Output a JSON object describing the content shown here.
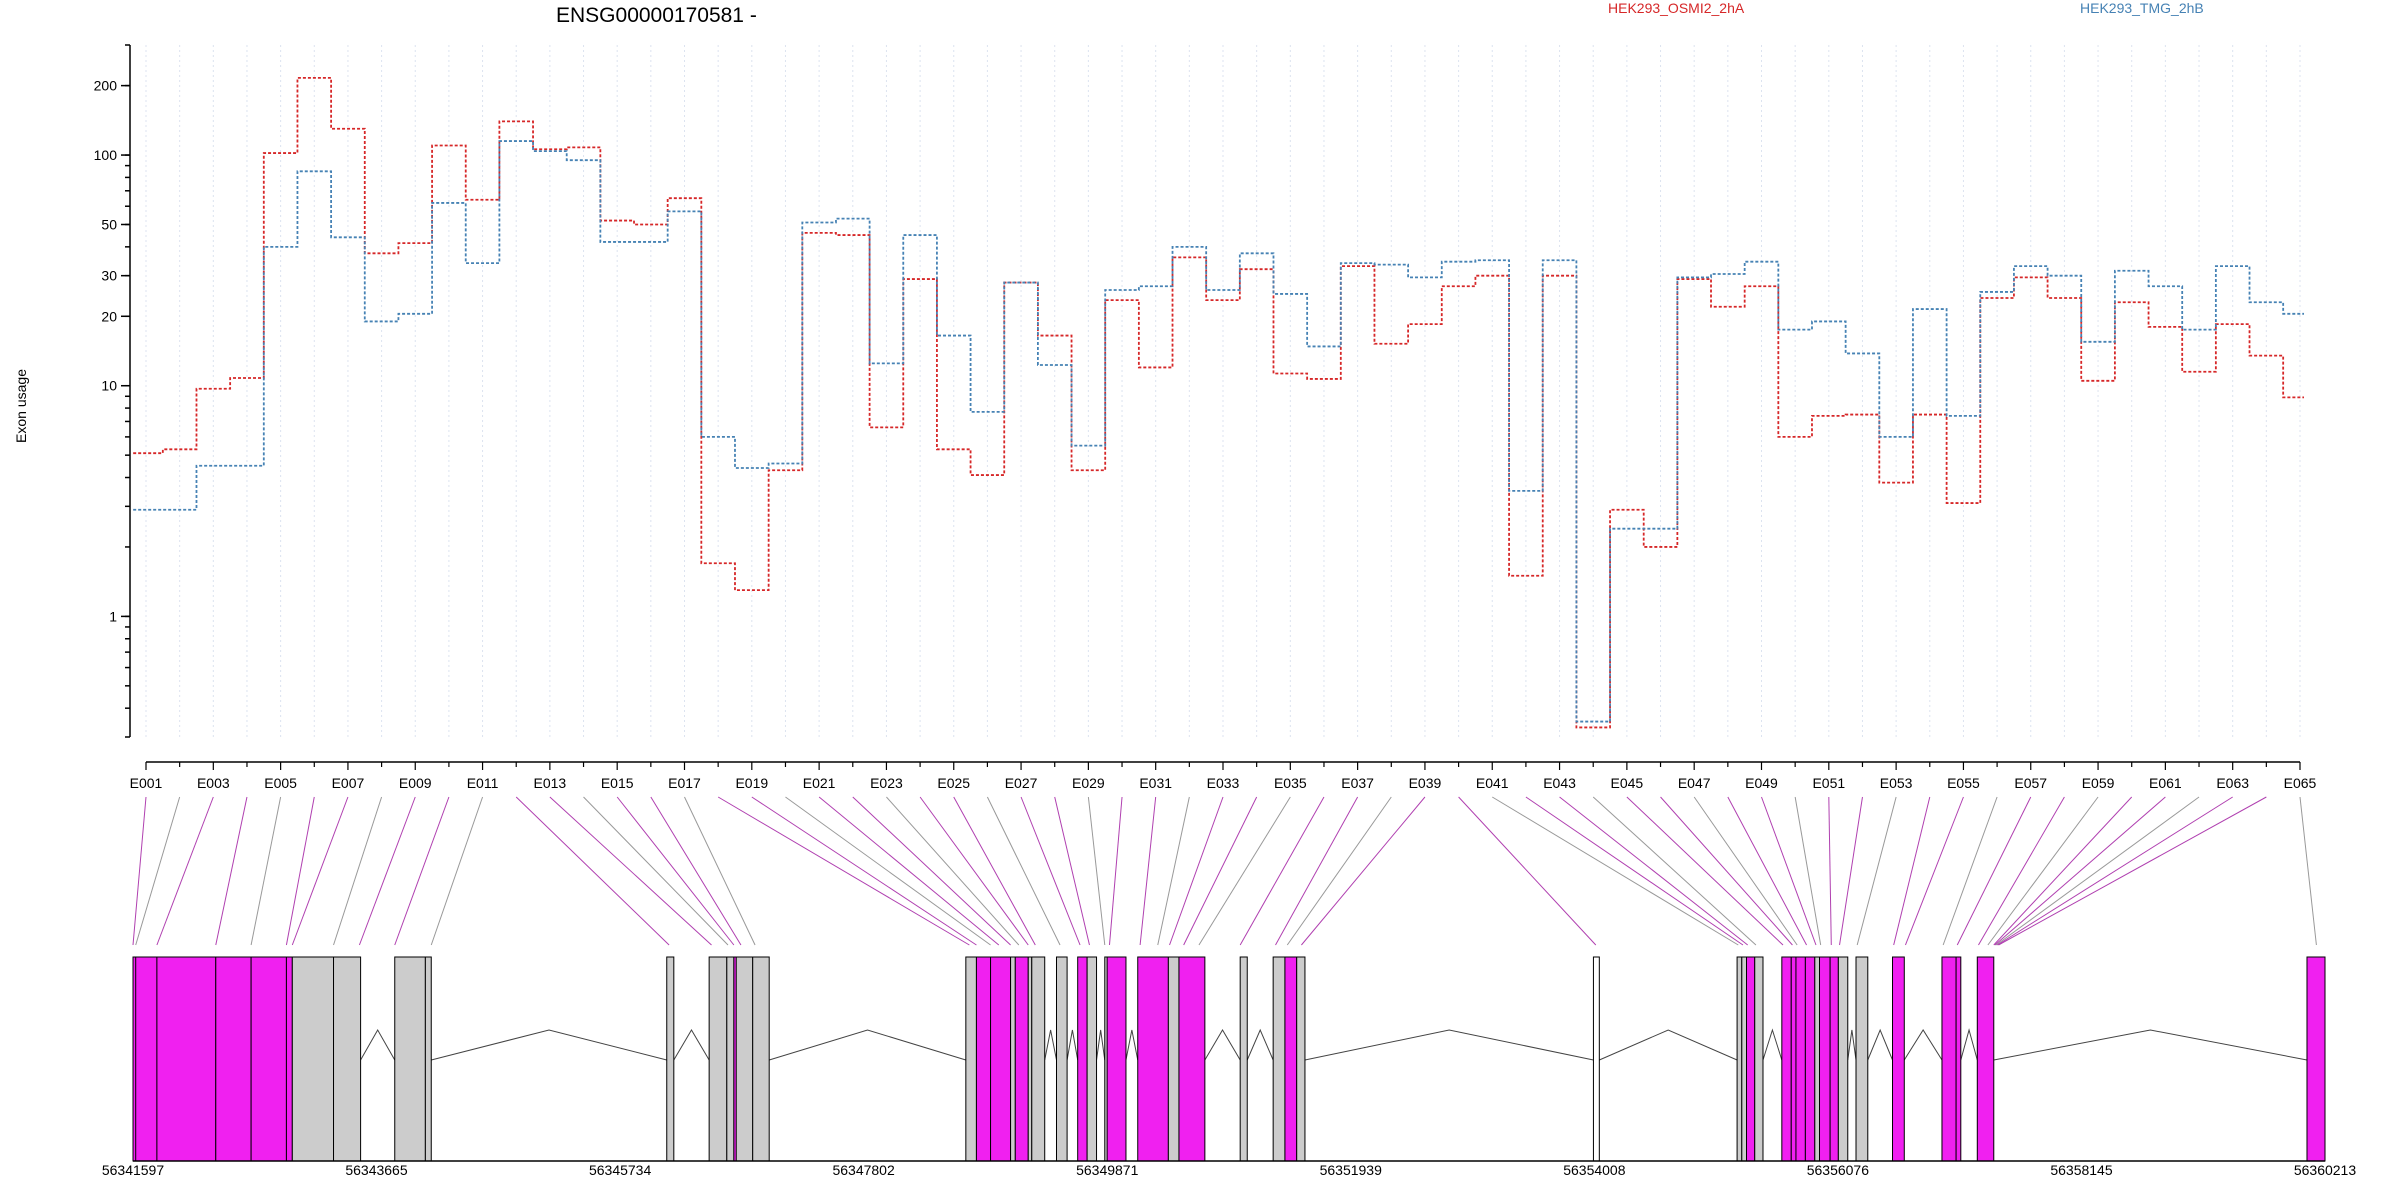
{
  "chart_data": {
    "type": "line",
    "title": "ENSG00000170581 -",
    "ylabel": "Exon usage",
    "yscale": "log",
    "ylim": [
      0.3,
      300
    ],
    "yticks": [
      1,
      10,
      20,
      30,
      50,
      100,
      200
    ],
    "series": [
      {
        "name": "HEK293_OSMI2_2hA",
        "color": "#d62728",
        "values": [
          5.1,
          5.3,
          9.7,
          10.8,
          102,
          216,
          130,
          37.5,
          41.5,
          110,
          64,
          140,
          106,
          108,
          52,
          50,
          65,
          1.7,
          1.3,
          4.3,
          46,
          45,
          6.6,
          29,
          5.3,
          4.1,
          28,
          16.5,
          4.3,
          23.5,
          12,
          36,
          23.5,
          32,
          11.3,
          10.7,
          33,
          15.2,
          18.5,
          27,
          30,
          1.5,
          30,
          0.33,
          2.9,
          2,
          29,
          22,
          27,
          6,
          7.4,
          7.5,
          3.8,
          7.5,
          3.1,
          24,
          29.5,
          24,
          10.5,
          23,
          18,
          11.5,
          18.5,
          13.5,
          8.9
        ]
      },
      {
        "name": "HEK293_TMG_2hB",
        "color": "#4682b4",
        "values": [
          2.9,
          2.9,
          4.5,
          4.5,
          40,
          85,
          44,
          19,
          20.5,
          62,
          34,
          115,
          104,
          95,
          42,
          42,
          57,
          6,
          4.4,
          4.6,
          51,
          53,
          12.5,
          45,
          16.5,
          7.7,
          28,
          12.3,
          5.5,
          26,
          27,
          40,
          26,
          37.5,
          25,
          14.8,
          34,
          33.5,
          29.5,
          34.5,
          35,
          3.5,
          35,
          0.35,
          2.4,
          2.4,
          29.5,
          30.5,
          34.5,
          17.5,
          19,
          13.8,
          6,
          21.5,
          7.4,
          25.5,
          33,
          30,
          15.5,
          31.5,
          27,
          17.5,
          33,
          23,
          20.5
        ]
      }
    ],
    "exon_labels": [
      "E001",
      "E003",
      "E005",
      "E007",
      "E009",
      "E011",
      "E013",
      "E015",
      "E017",
      "E019",
      "E021",
      "E023",
      "E025",
      "E027",
      "E029",
      "E031",
      "E033",
      "E035",
      "E037",
      "E039",
      "E041",
      "E043",
      "E045",
      "E047",
      "E049",
      "E051",
      "E053",
      "E055",
      "E057",
      "E059",
      "E061",
      "E063",
      "E065"
    ],
    "genomic_ticks": [
      "56341597",
      "56343665",
      "56345734",
      "56347802",
      "56349871",
      "56351939",
      "56354008",
      "56356076",
      "56358145",
      "56360213"
    ],
    "gene_model": {
      "start": 56341597,
      "end": 56360213,
      "colors": {
        "significant": "#f020f0",
        "normal": "#cccccc",
        "stroke": "#000000",
        "intron": "#444444",
        "link": "#999999"
      },
      "exons": [
        [
          56341597,
          56341620,
          1
        ],
        [
          56341620,
          56341800,
          1
        ],
        [
          56341800,
          56342300,
          1
        ],
        [
          56342300,
          56342600,
          1
        ],
        [
          56342600,
          56342900,
          1
        ],
        [
          56342900,
          56342950,
          1
        ],
        [
          56342950,
          56343300,
          0
        ],
        [
          56343300,
          56343530,
          0
        ],
        [
          56343820,
          56344080,
          0
        ],
        [
          56344080,
          56344130,
          0
        ],
        [
          56346130,
          56346190,
          0
        ],
        [
          56346490,
          56346640,
          0
        ],
        [
          56346640,
          56346700,
          0
        ],
        [
          56346700,
          56346720,
          1
        ],
        [
          56346720,
          56346860,
          0
        ],
        [
          56346860,
          56347000,
          0
        ],
        [
          56348670,
          56348760,
          0
        ],
        [
          56348760,
          56348880,
          1
        ],
        [
          56348880,
          56349050,
          1
        ],
        [
          56349050,
          56349090,
          0
        ],
        [
          56349090,
          56349200,
          1
        ],
        [
          56349200,
          56349230,
          0
        ],
        [
          56349230,
          56349340,
          0
        ],
        [
          56349440,
          56349530,
          0
        ],
        [
          56349620,
          56349700,
          1
        ],
        [
          56349700,
          56349780,
          0
        ],
        [
          56349850,
          56349870,
          0
        ],
        [
          56349870,
          56350030,
          1
        ],
        [
          56350130,
          56350390,
          1
        ],
        [
          56350390,
          56350480,
          0
        ],
        [
          56350480,
          56350700,
          1
        ],
        [
          56351000,
          56351060,
          0
        ],
        [
          56351280,
          56351380,
          0
        ],
        [
          56351380,
          56351480,
          1
        ],
        [
          56351480,
          56351550,
          0
        ],
        [
          56354000,
          56354050,
          "white"
        ],
        [
          56355220,
          56355260,
          0
        ],
        [
          56355260,
          56355300,
          0
        ],
        [
          56355300,
          56355370,
          1
        ],
        [
          56355370,
          56355440,
          0
        ],
        [
          56355600,
          56355680,
          1
        ],
        [
          56355680,
          56355720,
          1
        ],
        [
          56355720,
          56355800,
          1
        ],
        [
          56355800,
          56355880,
          1
        ],
        [
          56355880,
          56355920,
          0
        ],
        [
          56355920,
          56356010,
          1
        ],
        [
          56356010,
          56356080,
          1
        ],
        [
          56356080,
          56356160,
          0
        ],
        [
          56356230,
          56356330,
          0
        ],
        [
          56356540,
          56356640,
          1
        ],
        [
          56356960,
          56357080,
          1
        ],
        [
          56357080,
          56357120,
          1
        ],
        [
          56357260,
          56357400,
          1
        ],
        [
          56360060,
          56360213,
          1
        ]
      ],
      "link_targets": [
        56341597,
        56341620,
        56341800,
        56342300,
        56342600,
        56342900,
        56342950,
        56343300,
        56343520,
        56343820,
        56344130,
        56346150,
        56346510,
        56346650,
        56346700,
        56346760,
        56346880,
        56348700,
        56348760,
        56348880,
        56348950,
        56349050,
        56349120,
        56349200,
        56349260,
        56349470,
        56349640,
        56349720,
        56349850,
        56349890,
        56350150,
        56350300,
        56350400,
        56350520,
        56350650,
        56351000,
        56351300,
        56351400,
        56351520,
        56354020,
        56355230,
        56355270,
        56355310,
        56355380,
        56355610,
        56355690,
        56355730,
        56355810,
        56355890,
        56355930,
        56356020,
        56356090,
        56356240,
        56356550,
        56356650,
        56356970,
        56357090,
        56357270,
        56357350,
        56357400,
        56357410,
        56357420,
        56357430,
        56357440,
        56360140
      ]
    }
  }
}
